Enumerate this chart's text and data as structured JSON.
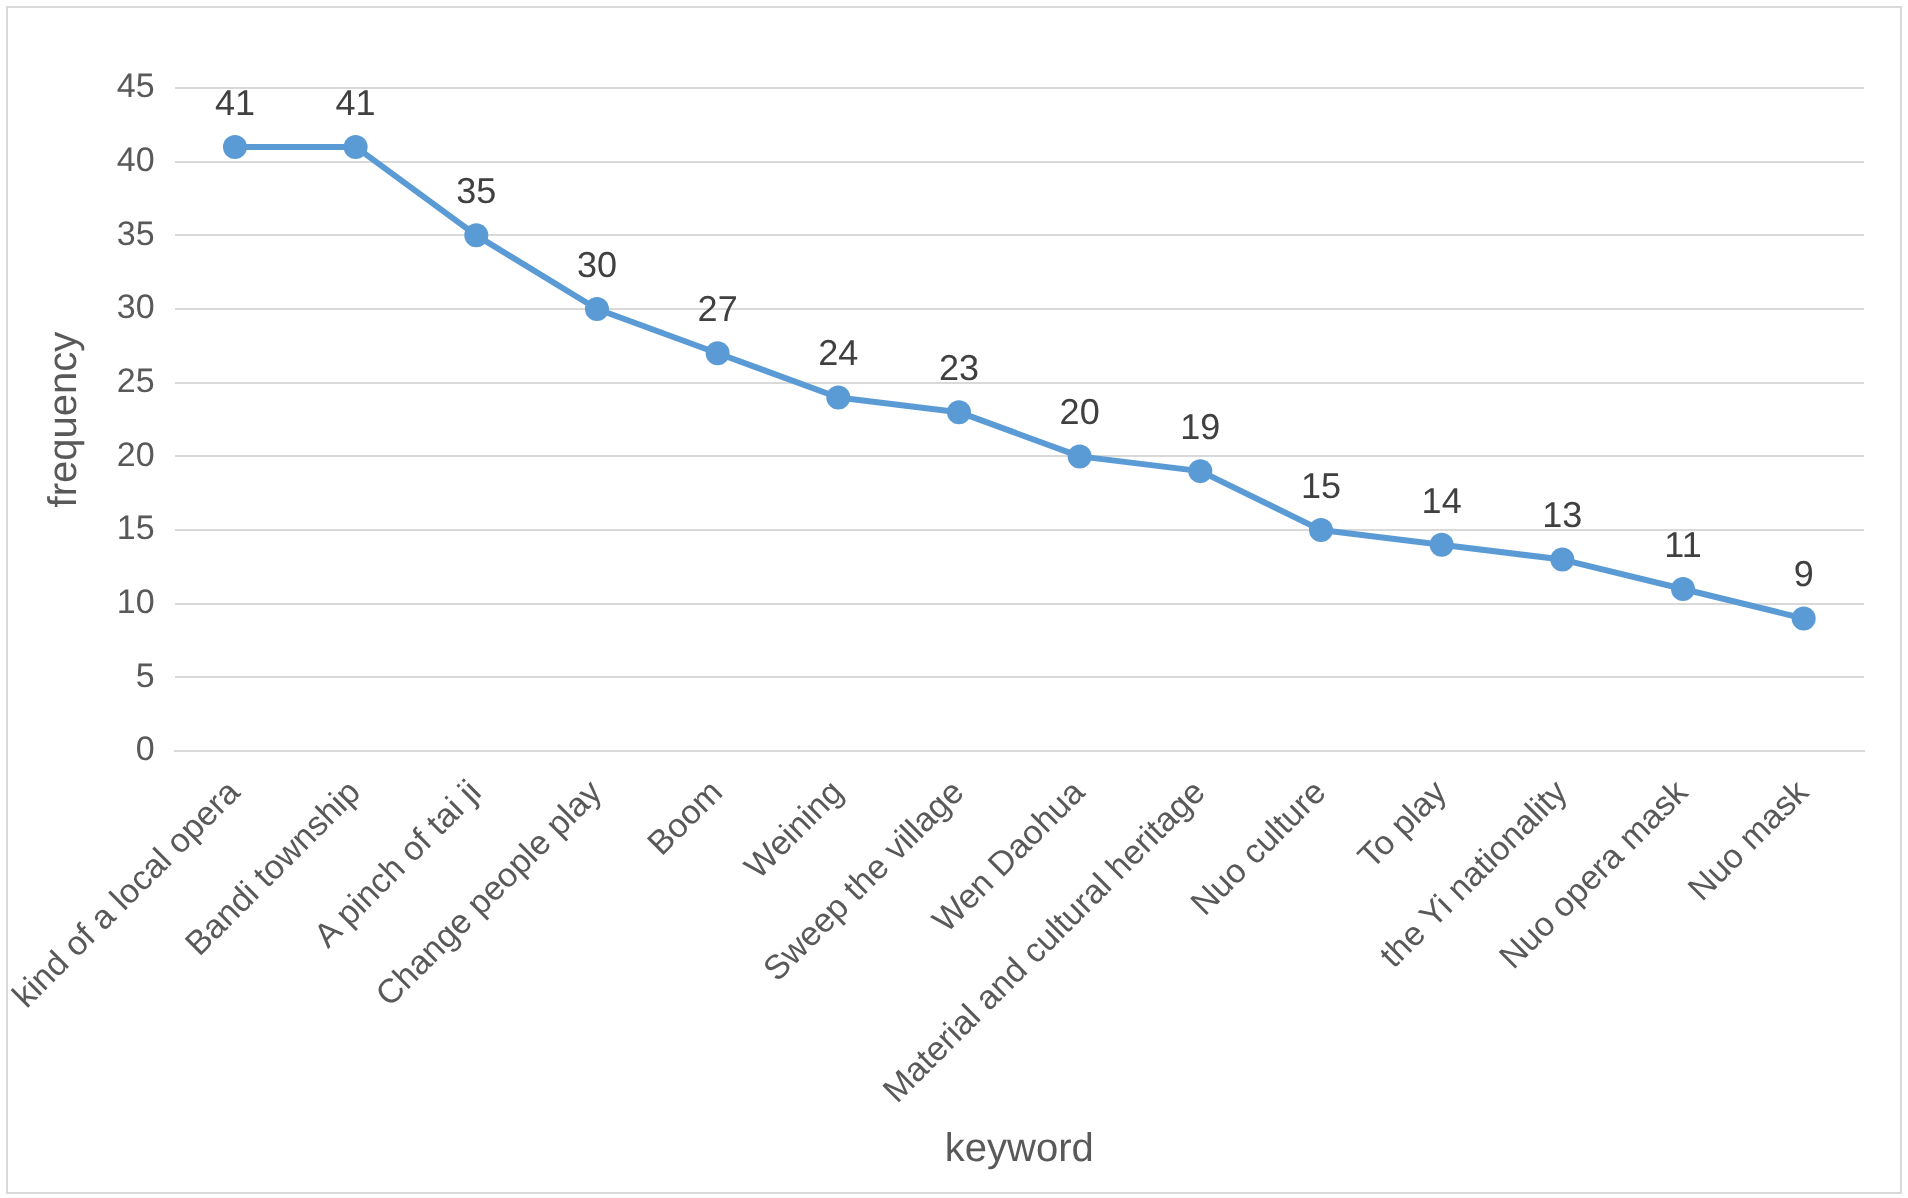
{
  "chart_data": {
    "type": "line",
    "xlabel": "keyword",
    "ylabel": "frequency",
    "categories": [
      "kind of a local opera",
      "Bandi township",
      "A pinch of tai ji",
      "Change people play",
      "Boom",
      "Weining",
      "Sweep the village",
      "Wen Daohua",
      "Material and cultural heritage",
      "Nuo culture",
      "To play",
      "the Yi nationality",
      "Nuo opera mask",
      "Nuo mask"
    ],
    "series": [
      {
        "color": "#5b9bd5",
        "values": [
          41,
          41,
          35,
          30,
          27,
          24,
          23,
          20,
          19,
          15,
          14,
          13,
          11,
          9
        ]
      }
    ],
    "ylim": [
      0,
      45
    ],
    "yticks": [
      0,
      5,
      10,
      15,
      20,
      25,
      30,
      35,
      40,
      45
    ],
    "grid": "y",
    "legend": false,
    "marker": "circle",
    "line_style": "solid",
    "data_labels": true
  }
}
